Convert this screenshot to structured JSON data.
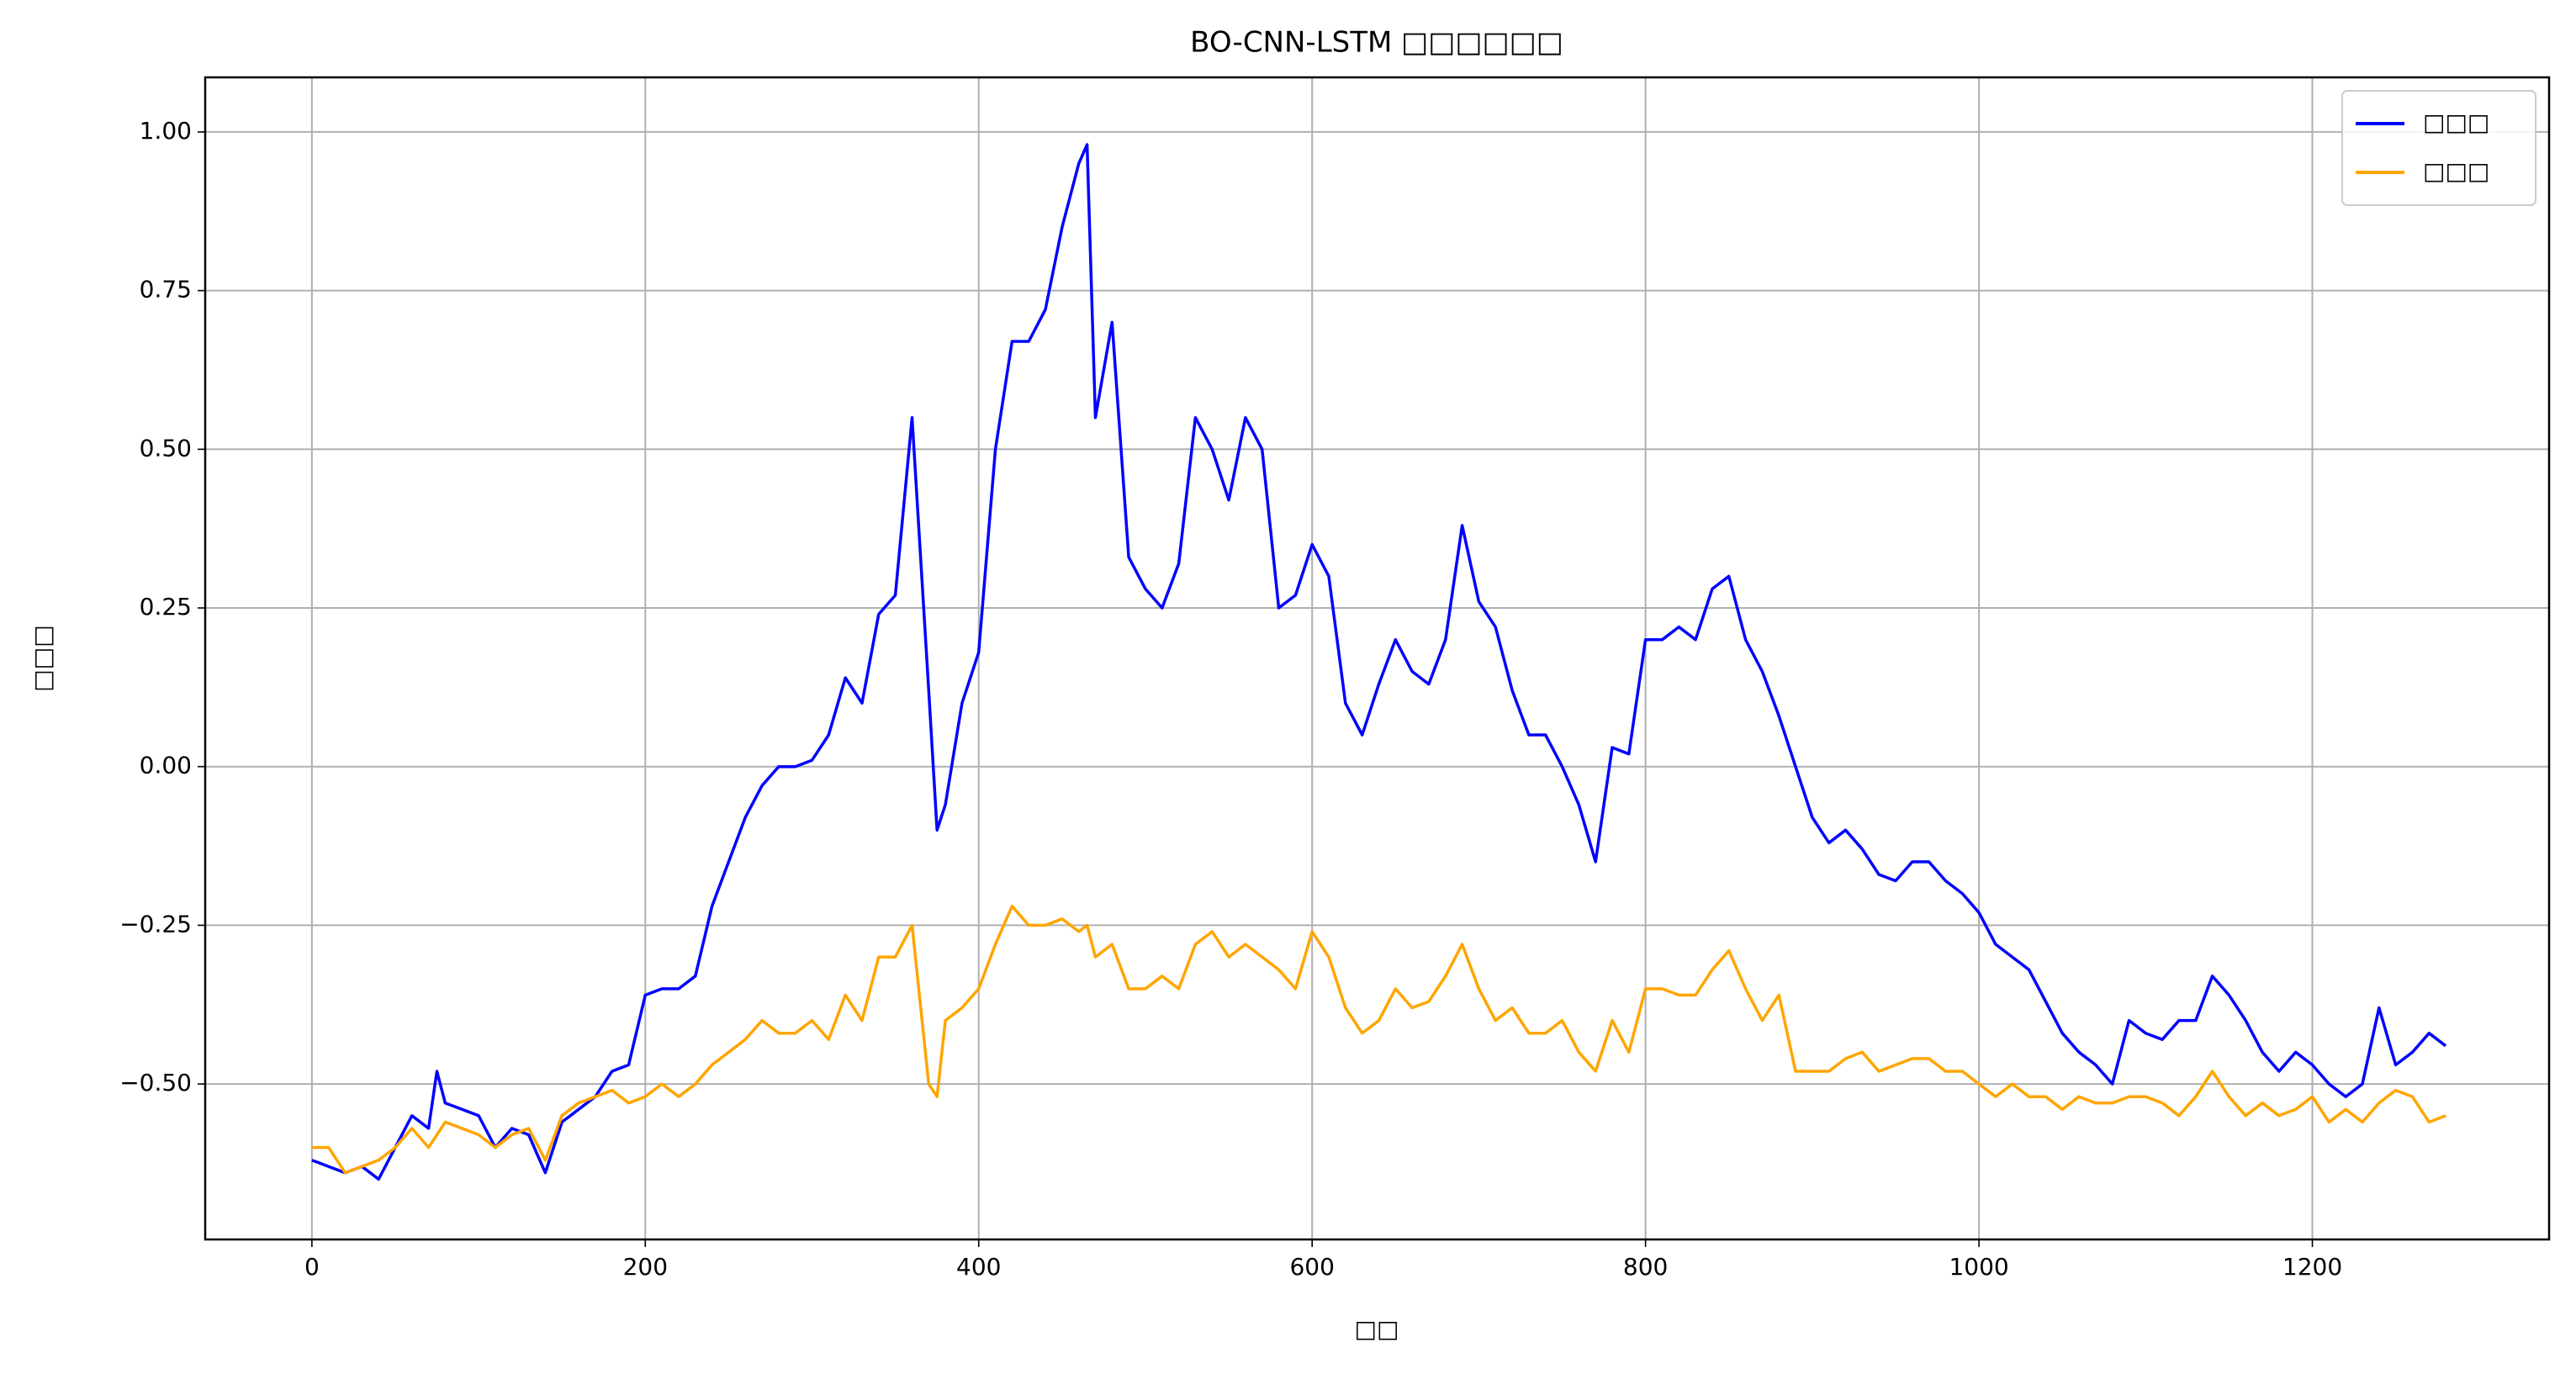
{
  "chart_data": {
    "type": "line",
    "title": "BO-CNN-LSTM □□□□□□",
    "xlabel": "□□",
    "ylabel": "□□□",
    "x": [
      0,
      10,
      20,
      30,
      40,
      50,
      60,
      70,
      75,
      80,
      90,
      100,
      110,
      120,
      130,
      140,
      150,
      160,
      170,
      180,
      190,
      200,
      210,
      220,
      230,
      240,
      250,
      260,
      270,
      280,
      290,
      300,
      310,
      320,
      330,
      340,
      350,
      360,
      370,
      375,
      380,
      390,
      400,
      410,
      420,
      430,
      440,
      450,
      460,
      465,
      470,
      480,
      490,
      500,
      510,
      520,
      530,
      540,
      550,
      560,
      570,
      580,
      590,
      600,
      610,
      620,
      630,
      640,
      650,
      660,
      670,
      680,
      690,
      700,
      710,
      720,
      730,
      740,
      750,
      760,
      770,
      780,
      790,
      800,
      810,
      820,
      830,
      840,
      850,
      860,
      870,
      880,
      890,
      900,
      910,
      920,
      930,
      940,
      950,
      960,
      970,
      980,
      990,
      1000,
      1010,
      1020,
      1030,
      1040,
      1050,
      1060,
      1070,
      1080,
      1090,
      1100,
      1110,
      1120,
      1130,
      1140,
      1150,
      1160,
      1170,
      1180,
      1190,
      1200,
      1210,
      1220,
      1230,
      1240,
      1250,
      1260,
      1270,
      1280
    ],
    "series": [
      {
        "name": "□□□",
        "color": "#0000ff",
        "values": [
          -0.62,
          -0.63,
          -0.64,
          -0.63,
          -0.65,
          -0.6,
          -0.55,
          -0.57,
          -0.48,
          -0.53,
          -0.54,
          -0.55,
          -0.6,
          -0.57,
          -0.58,
          -0.64,
          -0.56,
          -0.54,
          -0.52,
          -0.48,
          -0.47,
          -0.36,
          -0.35,
          -0.35,
          -0.33,
          -0.22,
          -0.15,
          -0.08,
          -0.03,
          0.0,
          0.0,
          0.01,
          0.05,
          0.14,
          0.1,
          0.24,
          0.27,
          0.55,
          0.12,
          -0.1,
          -0.06,
          0.1,
          0.18,
          0.5,
          0.67,
          0.67,
          0.72,
          0.85,
          0.95,
          0.98,
          0.55,
          0.7,
          0.33,
          0.28,
          0.25,
          0.32,
          0.55,
          0.5,
          0.42,
          0.55,
          0.5,
          0.25,
          0.27,
          0.35,
          0.3,
          0.1,
          0.05,
          0.13,
          0.2,
          0.15,
          0.13,
          0.2,
          0.38,
          0.26,
          0.22,
          0.12,
          0.05,
          0.05,
          0.0,
          -0.06,
          -0.15,
          0.03,
          0.02,
          0.2,
          0.2,
          0.22,
          0.2,
          0.28,
          0.3,
          0.2,
          0.15,
          0.08,
          0.0,
          -0.08,
          -0.12,
          -0.1,
          -0.13,
          -0.17,
          -0.18,
          -0.15,
          -0.15,
          -0.18,
          -0.2,
          -0.23,
          -0.28,
          -0.3,
          -0.32,
          -0.37,
          -0.42,
          -0.45,
          -0.47,
          -0.5,
          -0.4,
          -0.42,
          -0.43,
          -0.4,
          -0.4,
          -0.33,
          -0.36,
          -0.4,
          -0.45,
          -0.48,
          -0.45,
          -0.47,
          -0.5,
          -0.52,
          -0.5,
          -0.38,
          -0.47,
          -0.45,
          -0.42,
          -0.44
        ]
      },
      {
        "name": "□□□",
        "color": "#ffa500",
        "values": [
          -0.6,
          -0.6,
          -0.64,
          -0.63,
          -0.62,
          -0.6,
          -0.57,
          -0.6,
          -0.58,
          -0.56,
          -0.57,
          -0.58,
          -0.6,
          -0.58,
          -0.57,
          -0.62,
          -0.55,
          -0.53,
          -0.52,
          -0.51,
          -0.53,
          -0.52,
          -0.5,
          -0.52,
          -0.5,
          -0.47,
          -0.45,
          -0.43,
          -0.4,
          -0.42,
          -0.42,
          -0.4,
          -0.43,
          -0.36,
          -0.4,
          -0.3,
          -0.3,
          -0.25,
          -0.5,
          -0.52,
          -0.4,
          -0.38,
          -0.35,
          -0.28,
          -0.22,
          -0.25,
          -0.25,
          -0.24,
          -0.26,
          -0.25,
          -0.3,
          -0.28,
          -0.35,
          -0.35,
          -0.33,
          -0.35,
          -0.28,
          -0.26,
          -0.3,
          -0.28,
          -0.3,
          -0.32,
          -0.35,
          -0.26,
          -0.3,
          -0.38,
          -0.42,
          -0.4,
          -0.35,
          -0.38,
          -0.37,
          -0.33,
          -0.28,
          -0.35,
          -0.4,
          -0.38,
          -0.42,
          -0.42,
          -0.4,
          -0.45,
          -0.48,
          -0.4,
          -0.45,
          -0.35,
          -0.35,
          -0.36,
          -0.36,
          -0.32,
          -0.29,
          -0.35,
          -0.4,
          -0.36,
          -0.48,
          -0.48,
          -0.48,
          -0.46,
          -0.45,
          -0.48,
          -0.47,
          -0.46,
          -0.46,
          -0.48,
          -0.48,
          -0.5,
          -0.52,
          -0.5,
          -0.52,
          -0.52,
          -0.54,
          -0.52,
          -0.53,
          -0.53,
          -0.52,
          -0.52,
          -0.53,
          -0.55,
          -0.52,
          -0.48,
          -0.52,
          -0.55,
          -0.53,
          -0.55,
          -0.54,
          -0.52,
          -0.56,
          -0.54,
          -0.56,
          -0.53,
          -0.51,
          -0.52,
          -0.56,
          -0.55
        ]
      }
    ],
    "xlim": [
      -64,
      1342
    ],
    "ylim": [
      -0.745,
      1.086
    ],
    "xticks": [
      0,
      200,
      400,
      600,
      800,
      1000,
      1200
    ],
    "yticks": [
      {
        "value": -0.5,
        "label": "−0.50"
      },
      {
        "value": -0.25,
        "label": "−0.25"
      },
      {
        "value": 0,
        "label": "0.00"
      },
      {
        "value": 0.25,
        "label": "0.25"
      },
      {
        "value": 0.5,
        "label": "0.50"
      },
      {
        "value": 0.75,
        "label": "0.75"
      },
      {
        "value": 1,
        "label": "1.00"
      }
    ],
    "grid": true,
    "legend": "upper-right"
  }
}
